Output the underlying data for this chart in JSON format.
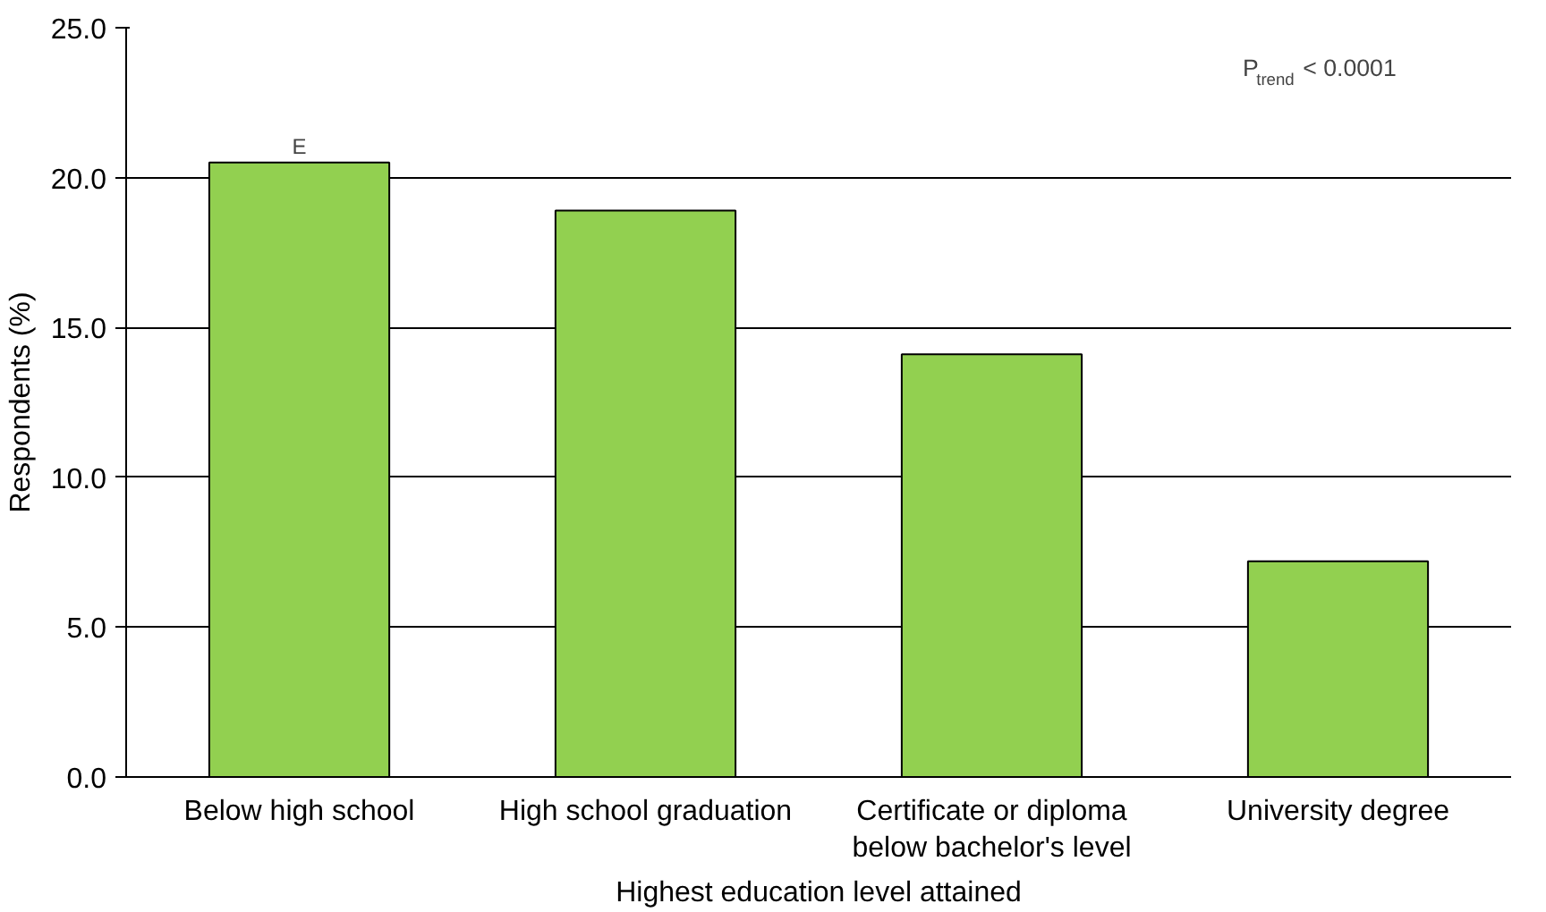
{
  "chart_data": {
    "type": "bar",
    "xlabel": "Highest education level attained",
    "ylabel": "Respondents (%)",
    "categories": [
      "Below high school",
      "High school graduation",
      "Certificate or diploma\nbelow bachelor's level",
      "University degree"
    ],
    "values": [
      20.5,
      18.9,
      14.1,
      7.2
    ],
    "color": "#92d050",
    "ylim": [
      0,
      25
    ],
    "yticks": [
      {
        "value": 0,
        "label": "0.0"
      },
      {
        "value": 5,
        "label": "5.0"
      },
      {
        "value": 10,
        "label": "10.0"
      },
      {
        "value": 15,
        "label": "15.0"
      },
      {
        "value": 20,
        "label": "20.0"
      },
      {
        "value": 25,
        "label": "25.0"
      }
    ],
    "grid": "y",
    "annotations": [
      {
        "text": "E",
        "x": "Below high school",
        "y": 20.5
      },
      "P$_{trend}$ < 0.0001"
    ]
  }
}
